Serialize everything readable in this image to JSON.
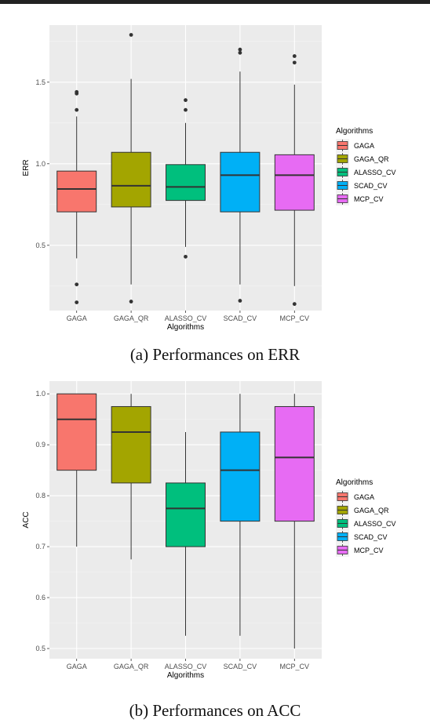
{
  "chart_data": [
    {
      "type": "boxplot",
      "caption": "(a) Performances on ERR",
      "xlabel": "Algorithms",
      "ylabel": "ERR",
      "ylim": [
        0.1,
        1.85
      ],
      "yticks": [
        0.5,
        1.0,
        1.5
      ],
      "ytick_labels": [
        "0.5",
        "1.0",
        "1.5"
      ],
      "grid": true,
      "legend": {
        "title": "Algorithms",
        "position": "right"
      },
      "categories": [
        "GAGA",
        "GAGA_QR",
        "ALASSO_CV",
        "SCAD_CV",
        "MCP_CV"
      ],
      "colors": [
        "#F8766D",
        "#A3A500",
        "#00BF7D",
        "#00B0F6",
        "#E76BF3"
      ],
      "boxes": [
        {
          "whisker_low": 0.42,
          "q1": 0.705,
          "median": 0.845,
          "q3": 0.955,
          "whisker_high": 1.29,
          "outliers": [
            0.15,
            0.26,
            1.33,
            1.43,
            1.44
          ]
        },
        {
          "whisker_low": 0.26,
          "q1": 0.735,
          "median": 0.865,
          "q3": 1.07,
          "whisker_high": 1.52,
          "outliers": [
            0.155,
            1.79
          ]
        },
        {
          "whisker_low": 0.49,
          "q1": 0.775,
          "median": 0.858,
          "q3": 0.995,
          "whisker_high": 1.25,
          "outliers": [
            0.43,
            1.33,
            1.39
          ]
        },
        {
          "whisker_low": 0.26,
          "q1": 0.705,
          "median": 0.93,
          "q3": 1.07,
          "whisker_high": 1.565,
          "outliers": [
            0.16,
            1.68,
            1.7
          ]
        },
        {
          "whisker_low": 0.25,
          "q1": 0.715,
          "median": 0.93,
          "q3": 1.055,
          "whisker_high": 1.485,
          "outliers": [
            0.14,
            1.62,
            1.66
          ]
        }
      ]
    },
    {
      "type": "boxplot",
      "caption": "(b) Performances on ACC",
      "xlabel": "Algorithms",
      "ylabel": "ACC",
      "ylim": [
        0.48,
        1.025
      ],
      "yticks": [
        0.5,
        0.6,
        0.7,
        0.8,
        0.9,
        1.0
      ],
      "ytick_labels": [
        "0.5",
        "0.6",
        "0.7",
        "0.8",
        "0.9",
        "1.0"
      ],
      "grid": true,
      "legend": {
        "title": "Algorithms",
        "position": "right"
      },
      "categories": [
        "GAGA",
        "GAGA_QR",
        "ALASSO_CV",
        "SCAD_CV",
        "MCP_CV"
      ],
      "colors": [
        "#F8766D",
        "#A3A500",
        "#00BF7D",
        "#00B0F6",
        "#E76BF3"
      ],
      "boxes": [
        {
          "whisker_low": 0.7,
          "q1": 0.85,
          "median": 0.95,
          "q3": 1.0,
          "whisker_high": 1.0,
          "outliers": []
        },
        {
          "whisker_low": 0.675,
          "q1": 0.825,
          "median": 0.925,
          "q3": 0.975,
          "whisker_high": 1.0,
          "outliers": []
        },
        {
          "whisker_low": 0.525,
          "q1": 0.7,
          "median": 0.775,
          "q3": 0.825,
          "whisker_high": 0.925,
          "outliers": []
        },
        {
          "whisker_low": 0.525,
          "q1": 0.75,
          "median": 0.85,
          "q3": 0.925,
          "whisker_high": 1.0,
          "outliers": []
        },
        {
          "whisker_low": 0.5,
          "q1": 0.75,
          "median": 0.875,
          "q3": 0.975,
          "whisker_high": 1.0,
          "outliers": []
        }
      ]
    }
  ]
}
